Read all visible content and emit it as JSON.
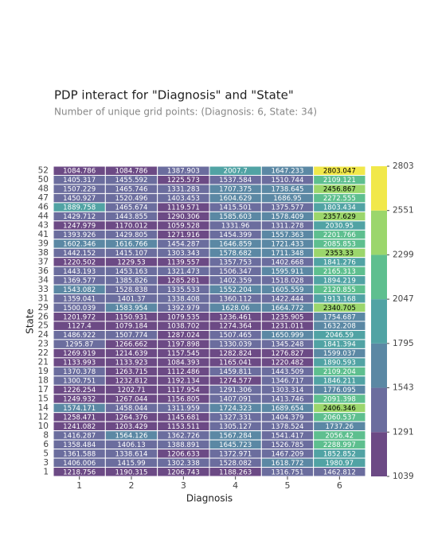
{
  "chart_data": {
    "type": "heatmap",
    "title": "PDP interact for \"Diagnosis\" and \"State\"",
    "subtitle": "Number of unique grid points: (Diagnosis: 6, State: 34)",
    "x_label": "Diagnosis",
    "y_label": "State",
    "x": [
      1,
      2,
      3,
      4,
      5,
      6
    ],
    "y": [
      52,
      50,
      48,
      47,
      46,
      44,
      43,
      41,
      39,
      38,
      37,
      36,
      34,
      33,
      31,
      29,
      26,
      25,
      24,
      23,
      22,
      21,
      19,
      18,
      17,
      15,
      14,
      12,
      10,
      8,
      6,
      5,
      3,
      1
    ],
    "values": [
      [
        1084.786,
        1084.786,
        1387.903,
        2007.7,
        1647.233,
        2803.047
      ],
      [
        1405.317,
        1455.592,
        1225.573,
        1537.584,
        1510.744,
        2109.121
      ],
      [
        1507.229,
        1465.746,
        1331.283,
        1707.375,
        1738.645,
        2456.867
      ],
      [
        1450.927,
        1520.496,
        1403.453,
        1604.629,
        1686.95,
        2272.555
      ],
      [
        1889.758,
        1465.674,
        1119.571,
        1415.501,
        1375.577,
        1803.434
      ],
      [
        1429.712,
        1443.855,
        1290.306,
        1585.603,
        1578.409,
        2357.629
      ],
      [
        1247.979,
        1170.012,
        1059.528,
        1331.96,
        1311.278,
        2030.95
      ],
      [
        1393.926,
        1429.805,
        1271.916,
        1454.399,
        1557.363,
        2201.766
      ],
      [
        1602.346,
        1616.766,
        1454.287,
        1646.859,
        1721.433,
        2085.853
      ],
      [
        1442.152,
        1415.107,
        1303.343,
        1578.682,
        1711.348,
        2353.33
      ],
      [
        1220.502,
        1229.53,
        1139.557,
        1357.753,
        1402.668,
        1841.276
      ],
      [
        1443.193,
        1453.163,
        1321.473,
        1506.347,
        1595.911,
        2165.313
      ],
      [
        1369.577,
        1385.826,
        1285.281,
        1402.359,
        1518.028,
        1894.219
      ],
      [
        1543.082,
        1528.838,
        1335.533,
        1552.204,
        1605.559,
        2120.855
      ],
      [
        1359.041,
        1401.37,
        1338.408,
        1360.112,
        1422.444,
        1913.168
      ],
      [
        1500.039,
        1583.954,
        1392.979,
        1628.06,
        1664.772,
        2340.705
      ],
      [
        1201.972,
        1150.931,
        1079.535,
        1236.461,
        1235.905,
        1754.687
      ],
      [
        1127.4,
        1079.184,
        1038.702,
        1274.364,
        1231.011,
        1632.208
      ],
      [
        1486.922,
        1507.774,
        1287.024,
        1507.465,
        1650.999,
        2046.59
      ],
      [
        1295.87,
        1266.662,
        1197.898,
        1330.039,
        1345.248,
        1841.394
      ],
      [
        1269.919,
        1214.639,
        1157.545,
        1282.824,
        1276.827,
        1599.037
      ],
      [
        1133.993,
        1133.923,
        1084.393,
        1165.041,
        1220.482,
        1890.593
      ],
      [
        1370.378,
        1263.715,
        1112.486,
        1459.811,
        1443.509,
        2109.204
      ],
      [
        1300.751,
        1232.812,
        1192.134,
        1274.577,
        1346.717,
        1846.211
      ],
      [
        1226.254,
        1202.71,
        1117.954,
        1291.306,
        1303.314,
        1776.095
      ],
      [
        1249.932,
        1267.044,
        1156.805,
        1407.091,
        1413.746,
        2091.398
      ],
      [
        1574.171,
        1458.044,
        1311.959,
        1724.323,
        1689.654,
        2406.346
      ],
      [
        1258.471,
        1264.376,
        1145.681,
        1327.331,
        1404.379,
        2060.537
      ],
      [
        1241.082,
        1203.429,
        1153.511,
        1305.127,
        1378.524,
        1737.26
      ],
      [
        1416.287,
        1564.126,
        1362.726,
        1567.284,
        1541.417,
        2056.42
      ],
      [
        1358.484,
        1406.13,
        1388.891,
        1645.723,
        1526.785,
        2288.997
      ],
      [
        1361.588,
        1338.614,
        1206.633,
        1372.971,
        1467.209,
        1852.852
      ],
      [
        1406.006,
        1415.99,
        1302.338,
        1528.082,
        1618.772,
        1980.97
      ],
      [
        1218.756,
        1190.315,
        1206.743,
        1188.263,
        1316.751,
        1462.812
      ]
    ],
    "colorbar_ticks": [
      1039,
      1291,
      1543,
      1795,
      2047,
      2299,
      2551,
      2803
    ],
    "colors": [
      "#6c4a85",
      "#6b6d9e",
      "#5b88a4",
      "#51a3a4",
      "#5ebf8f",
      "#9bd66c",
      "#f1e84a"
    ]
  }
}
